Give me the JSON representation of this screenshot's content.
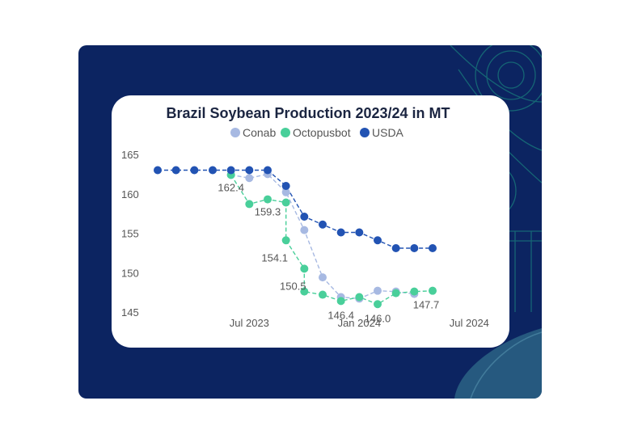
{
  "colors": {
    "panel_background": "#0c2461",
    "card_background": "#ffffff",
    "conab": "#a7b9e2",
    "octopusbot": "#49cf9a",
    "usda": "#2253b3"
  },
  "chart_data": {
    "type": "line",
    "title": "Brazil Soybean Production 2023/24 in MT",
    "xlabel": "",
    "ylabel": "",
    "x_ticks": [
      "Jul 2023",
      "Jan 2024",
      "Jul 2024"
    ],
    "y_ticks": [
      "145",
      "150",
      "155",
      "160",
      "165"
    ],
    "ylim": [
      145,
      165
    ],
    "legend_position": "top-center",
    "grid": false,
    "x": [
      "2023-02",
      "2023-03",
      "2023-04",
      "2023-05",
      "2023-06",
      "2023-07",
      "2023-08",
      "2023-09",
      "2023-10",
      "2023-11",
      "2023-12",
      "2024-01",
      "2024-02",
      "2024-03",
      "2024-04",
      "2024-05",
      "2024-06",
      "2024-07",
      "2024-08"
    ],
    "x_ticks_at": [
      "2023-07",
      "2024-01",
      "2024-07"
    ],
    "series": [
      {
        "name": "Conab",
        "color": "#a7b9e2",
        "points": [
          [
            "2023-06",
            162.4
          ],
          [
            "2023-07",
            162.0
          ],
          [
            "2023-08",
            162.5
          ],
          [
            "2023-09",
            160.2
          ],
          [
            "2023-10",
            155.4
          ],
          [
            "2023-11",
            149.4
          ],
          [
            "2023-12",
            146.9
          ],
          [
            "2024-01",
            146.7
          ],
          [
            "2024-02",
            147.7
          ],
          [
            "2024-03",
            147.6
          ],
          [
            "2024-04",
            147.3
          ]
        ]
      },
      {
        "name": "Octopusbot",
        "color": "#49cf9a",
        "points": [
          [
            "2023-06",
            162.4
          ],
          [
            "2023-07",
            158.7
          ],
          [
            "2023-08",
            159.3
          ],
          [
            "2023-09",
            158.9
          ],
          [
            "2023-09",
            154.1
          ],
          [
            "2023-10",
            150.5
          ],
          [
            "2023-10",
            147.6
          ],
          [
            "2023-11",
            147.2
          ],
          [
            "2023-12",
            146.4
          ],
          [
            "2024-01",
            146.9
          ],
          [
            "2024-02",
            146.0
          ],
          [
            "2024-03",
            147.4
          ],
          [
            "2024-04",
            147.6
          ],
          [
            "2024-05",
            147.7
          ]
        ]
      },
      {
        "name": "USDA",
        "color": "#2253b3",
        "points": [
          [
            "2023-02",
            163.0
          ],
          [
            "2023-03",
            163.0
          ],
          [
            "2023-04",
            163.0
          ],
          [
            "2023-05",
            163.0
          ],
          [
            "2023-06",
            163.0
          ],
          [
            "2023-07",
            163.0
          ],
          [
            "2023-08",
            163.0
          ],
          [
            "2023-09",
            161.0
          ],
          [
            "2023-10",
            157.1
          ],
          [
            "2023-11",
            156.1
          ],
          [
            "2023-12",
            155.1
          ],
          [
            "2024-01",
            155.1
          ],
          [
            "2024-02",
            154.1
          ],
          [
            "2024-03",
            153.1
          ],
          [
            "2024-04",
            153.1
          ],
          [
            "2024-05",
            153.1
          ]
        ]
      }
    ],
    "data_labels": [
      "162.4",
      "159.3",
      "154.1",
      "150.5",
      "146.4",
      "146.0",
      "147.7"
    ]
  }
}
